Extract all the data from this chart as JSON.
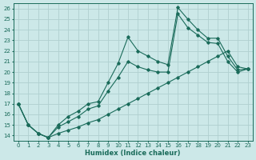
{
  "title": "",
  "xlabel": "Humidex (Indice chaleur)",
  "xlim": [
    -0.5,
    23.5
  ],
  "ylim": [
    13.5,
    26.5
  ],
  "xticks": [
    0,
    1,
    2,
    3,
    4,
    5,
    6,
    7,
    8,
    9,
    10,
    11,
    12,
    13,
    14,
    15,
    16,
    17,
    18,
    19,
    20,
    21,
    22,
    23
  ],
  "yticks": [
    14,
    15,
    16,
    17,
    18,
    19,
    20,
    21,
    22,
    23,
    24,
    25,
    26
  ],
  "bg_color": "#cce8e8",
  "line_color": "#1a6b5a",
  "grid_color": "#b0d0d0",
  "line1_x": [
    0,
    1,
    2,
    3,
    4,
    5,
    6,
    7,
    8,
    9,
    10,
    11,
    12,
    13,
    14,
    15,
    16,
    17,
    18,
    19,
    20,
    21,
    22,
    23
  ],
  "line1_y": [
    17,
    15,
    14.2,
    13.8,
    15.0,
    15.8,
    16.3,
    17.0,
    17.2,
    19.0,
    20.8,
    23.3,
    22.0,
    21.5,
    21.0,
    20.7,
    26.1,
    25.0,
    24.0,
    23.2,
    23.2,
    21.5,
    20.2,
    20.3
  ],
  "line2_x": [
    0,
    1,
    2,
    3,
    4,
    5,
    6,
    7,
    8,
    9,
    10,
    11,
    12,
    13,
    14,
    15,
    16,
    17,
    18,
    19,
    20,
    21,
    22,
    23
  ],
  "line2_y": [
    17,
    15,
    14.2,
    13.8,
    14.8,
    15.3,
    15.8,
    16.5,
    16.8,
    18.2,
    19.5,
    21.0,
    20.5,
    20.2,
    20.0,
    20.0,
    25.5,
    24.2,
    23.5,
    22.8,
    22.7,
    21.0,
    20.0,
    20.3
  ],
  "line3_x": [
    0,
    1,
    2,
    3,
    4,
    5,
    6,
    7,
    8,
    9,
    10,
    11,
    12,
    13,
    14,
    15,
    16,
    17,
    18,
    19,
    20,
    21,
    22,
    23
  ],
  "line3_y": [
    17,
    15,
    14.2,
    13.8,
    14.2,
    14.5,
    14.8,
    15.2,
    15.5,
    16.0,
    16.5,
    17.0,
    17.5,
    18.0,
    18.5,
    19.0,
    19.5,
    20.0,
    20.5,
    21.0,
    21.5,
    22.0,
    20.5,
    20.3
  ]
}
